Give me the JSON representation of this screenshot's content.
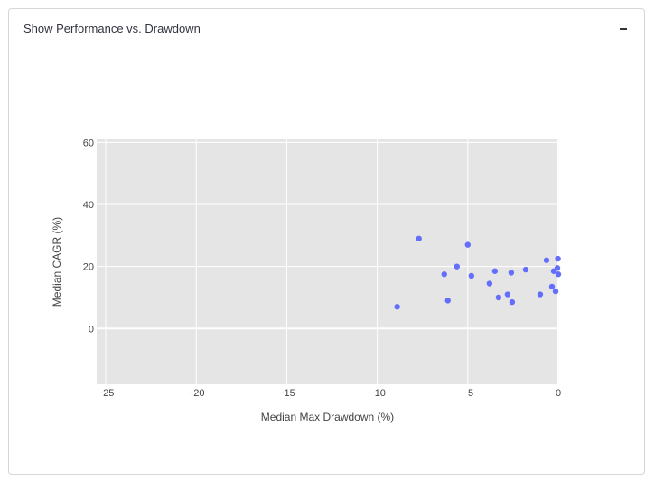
{
  "panel": {
    "title": "Show Performance vs. Drawdown",
    "collapse_icon": "minus-icon"
  },
  "chart_data": {
    "type": "scatter",
    "title": "",
    "xlabel": "Median Max Drawdown (%)",
    "ylabel": "Median CAGR (%)",
    "xlim": [
      -25.5,
      0
    ],
    "ylim": [
      -18,
      61
    ],
    "xticks": [
      -25,
      -20,
      -15,
      -10,
      -5,
      0
    ],
    "yticks": [
      0,
      20,
      40,
      60
    ],
    "grid": true,
    "legend": "none",
    "marker_color": "#636efa",
    "plot_bg": "#e5e5e5",
    "x": [
      -8.9,
      -7.7,
      -6.3,
      -6.1,
      -5.6,
      -5.0,
      -4.8,
      -3.8,
      -3.5,
      -3.3,
      -2.8,
      -2.6,
      -2.55,
      -1.8,
      -1.0,
      -0.65,
      -0.35,
      -0.25,
      -0.15,
      -0.05,
      -0.02,
      0.0
    ],
    "y": [
      7,
      29,
      17.5,
      9,
      20,
      27,
      17,
      14.5,
      18.5,
      10,
      11,
      18,
      8.5,
      19,
      11,
      22,
      13.5,
      18.5,
      12,
      19.5,
      22.5,
      17.5
    ]
  }
}
